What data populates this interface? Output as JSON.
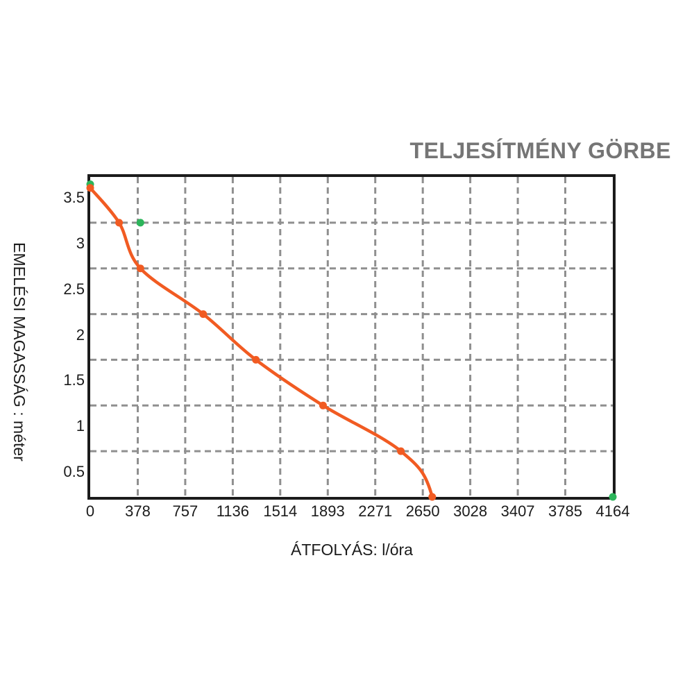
{
  "title": "TELJESÍTMÉNY GÖRBE",
  "colors": {
    "curve_orange": "#F15B22",
    "marker_green": "#2DB55B",
    "grid_gray": "#8F8F8F",
    "ink": "#1B1B1B",
    "title_gray": "#757575",
    "background": "#FFFFFF"
  },
  "chart_data": {
    "type": "line",
    "title": "TELJESÍTMÉNY GÖRBE",
    "xlabel": "ÁTFOLYÁS: l/óra",
    "ylabel": "EMELÉSI MAGASSÁG : méter",
    "xlim": [
      0,
      4164
    ],
    "ylim": [
      0.25,
      3.75
    ],
    "x_ticks": [
      0,
      378,
      757,
      1136,
      1514,
      1893,
      2271,
      2650,
      3028,
      3407,
      3785,
      4164
    ],
    "y_tick_labels": [
      "3.5",
      "3",
      "2.5",
      "2",
      "1.5",
      "1",
      "0.5"
    ],
    "grid": {
      "style": "dashed",
      "color": "#8F8F8F",
      "vertical_divisions": 11,
      "horizontal_divisions": 7
    },
    "legend": "none",
    "series": [
      {
        "name": "pump-performance-curve",
        "type": "line-with-markers",
        "color": "#F15B22",
        "points": [
          [
            0,
            3.63
          ],
          [
            230,
            3.25
          ],
          [
            400,
            2.75
          ],
          [
            900,
            2.25
          ],
          [
            1320,
            1.75
          ],
          [
            1855,
            1.25
          ],
          [
            2475,
            0.75
          ],
          [
            2725,
            0.25
          ]
        ]
      },
      {
        "name": "limit-markers",
        "type": "scatter",
        "color": "#2DB55B",
        "points": [
          [
            0,
            3.67
          ],
          [
            400,
            3.25
          ],
          [
            4164,
            0.25
          ]
        ]
      }
    ]
  }
}
